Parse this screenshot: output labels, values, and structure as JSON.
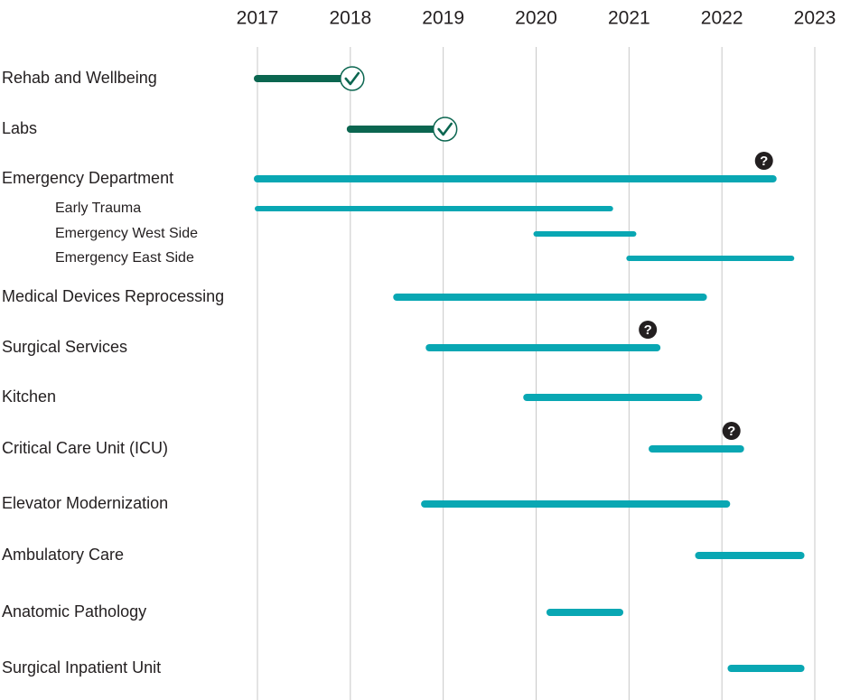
{
  "chart_data": {
    "type": "gantt",
    "title": "",
    "xlabel": "",
    "ylabel": "",
    "xlim": [
      2017,
      2023
    ],
    "x_ticks": [
      "2017",
      "2018",
      "2019",
      "2020",
      "2021",
      "2022",
      "2023"
    ],
    "colors": {
      "completed": "#0b6650",
      "in_progress": "#09a7b3",
      "grid": "#c8c8c8",
      "text": "#231f20"
    },
    "legend": [],
    "tasks": [
      {
        "label": "Rehab and Wellbeing",
        "start": 2017.0,
        "end": 2018.0,
        "status": "completed",
        "marker": "check",
        "level": 0
      },
      {
        "label": "Labs",
        "start": 2018.0,
        "end": 2019.0,
        "status": "completed",
        "marker": "check",
        "level": 0
      },
      {
        "label": "Emergency Department",
        "start": 2017.0,
        "end": 2022.55,
        "status": "in_progress",
        "marker": "question",
        "level": 0
      },
      {
        "label": "Early Trauma",
        "start": 2017.0,
        "end": 2020.8,
        "status": "in_progress",
        "marker": "",
        "level": 1
      },
      {
        "label": "Emergency West Side",
        "start": 2020.0,
        "end": 2021.05,
        "status": "in_progress",
        "marker": "",
        "level": 1
      },
      {
        "label": "Emergency East Side",
        "start": 2021.0,
        "end": 2022.75,
        "status": "in_progress",
        "marker": "",
        "level": 1
      },
      {
        "label": "Medical Devices Reprocessing",
        "start": 2018.5,
        "end": 2021.8,
        "status": "in_progress",
        "marker": "",
        "level": 0
      },
      {
        "label": "Surgical Services",
        "start": 2018.85,
        "end": 2021.3,
        "status": "in_progress",
        "marker": "question",
        "level": 0
      },
      {
        "label": "Kitchen",
        "start": 2019.9,
        "end": 2021.75,
        "status": "in_progress",
        "marker": "",
        "level": 0
      },
      {
        "label": "Critical Care Unit (ICU)",
        "start": 2021.25,
        "end": 2022.2,
        "status": "in_progress",
        "marker": "question",
        "level": 0
      },
      {
        "label": "Elevator Modernization",
        "start": 2018.8,
        "end": 2022.05,
        "status": "in_progress",
        "marker": "",
        "level": 0
      },
      {
        "label": "Ambulatory Care",
        "start": 2021.75,
        "end": 2022.85,
        "status": "in_progress",
        "marker": "",
        "level": 0
      },
      {
        "label": "Anatomic Pathology",
        "start": 2020.15,
        "end": 2020.9,
        "status": "in_progress",
        "marker": "",
        "level": 0
      },
      {
        "label": "Surgical Inpatient Unit",
        "start": 2022.1,
        "end": 2022.85,
        "status": "in_progress",
        "marker": "",
        "level": 0
      }
    ]
  }
}
